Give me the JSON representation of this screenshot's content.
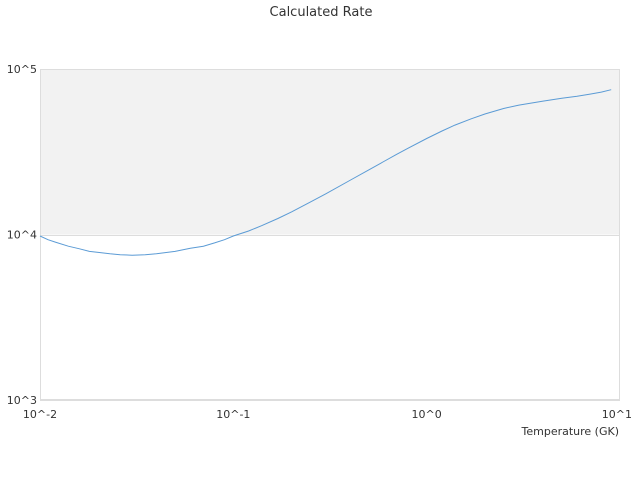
{
  "chart_data": {
    "type": "line",
    "title": "Calculated Rate",
    "xlabel": "Temperature (GK)",
    "ylabel": "",
    "x_scale": "log",
    "y_scale": "log",
    "xlim": [
      0.01,
      10
    ],
    "ylim": [
      1000,
      100000
    ],
    "x_ticks": [
      {
        "value": 0.01,
        "label": "10^-2"
      },
      {
        "value": 0.1,
        "label": "10^-1"
      },
      {
        "value": 1,
        "label": "10^0"
      },
      {
        "value": 10,
        "label": "10^1"
      }
    ],
    "y_ticks": [
      {
        "value": 1000,
        "label": "10^3"
      },
      {
        "value": 10000,
        "label": "10^4"
      },
      {
        "value": 100000,
        "label": "10^5"
      }
    ],
    "shaded_band": {
      "y_from": 10000,
      "y_to": 100000,
      "color": "#f2f2f2"
    },
    "grid": false,
    "series": [
      {
        "color": "#5b9bd5",
        "x": [
          0.01,
          0.011,
          0.012,
          0.014,
          0.016,
          0.018,
          0.02,
          0.023,
          0.026,
          0.03,
          0.035,
          0.04,
          0.05,
          0.06,
          0.07,
          0.08,
          0.09,
          0.1,
          0.12,
          0.14,
          0.17,
          0.2,
          0.25,
          0.3,
          0.4,
          0.5,
          0.6,
          0.7,
          0.8,
          1.0,
          1.2,
          1.4,
          1.7,
          2.0,
          2.5,
          3.0,
          4.0,
          5.0,
          6.0,
          7.0,
          8.0,
          9.0
        ],
        "y": [
          9800,
          9300,
          9000,
          8500,
          8200,
          7900,
          7800,
          7650,
          7550,
          7500,
          7550,
          7650,
          7900,
          8250,
          8500,
          8900,
          9300,
          9800,
          10500,
          11300,
          12500,
          13700,
          15700,
          17600,
          21200,
          24500,
          27600,
          30500,
          33200,
          38000,
          42200,
          45800,
          50000,
          53500,
          57700,
          60500,
          64000,
          66500,
          68500,
          70500,
          72500,
          75000
        ]
      }
    ]
  }
}
